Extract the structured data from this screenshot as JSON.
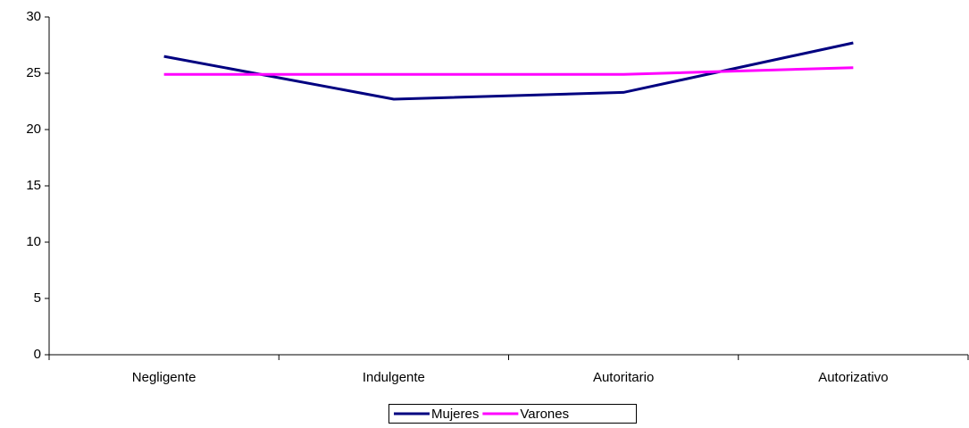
{
  "chart_data": {
    "type": "line",
    "categories": [
      "Negligente",
      "Indulgente",
      "Autoritario",
      "Autorizativo"
    ],
    "series": [
      {
        "name": "Mujeres",
        "color": "#000080",
        "values": [
          26.5,
          22.7,
          23.3,
          27.7
        ]
      },
      {
        "name": "Varones",
        "color": "#ff00ff",
        "values": [
          24.9,
          24.9,
          24.9,
          25.5
        ]
      }
    ],
    "ylim": [
      0,
      30
    ],
    "yticks": [
      0,
      5,
      10,
      15,
      20,
      25,
      30
    ],
    "grid": false,
    "legend": "bottom"
  }
}
